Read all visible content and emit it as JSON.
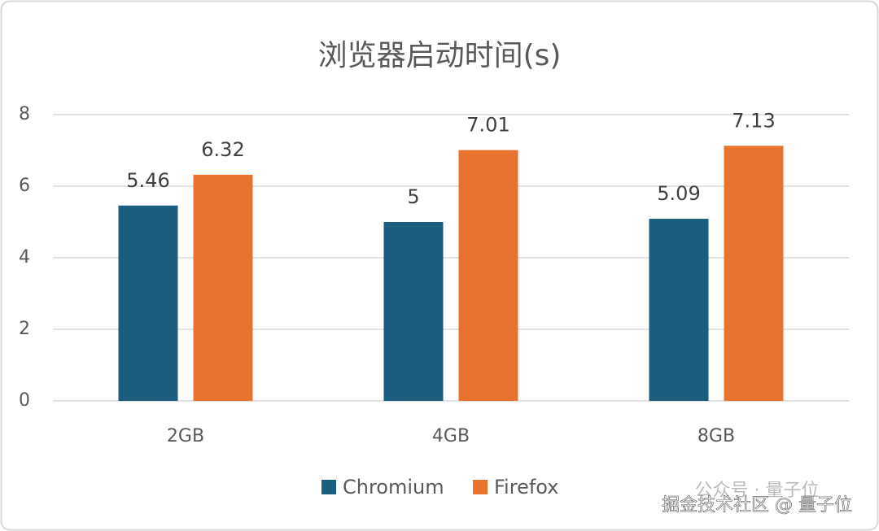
{
  "chart_data": {
    "type": "bar",
    "title": "浏览器启动时间(s)",
    "categories": [
      "2GB",
      "4GB",
      "8GB"
    ],
    "series": [
      {
        "name": "Chromium",
        "color": "#1b5e7e",
        "values": [
          5.46,
          5,
          5.09
        ]
      },
      {
        "name": "Firefox",
        "color": "#e8732f",
        "values": [
          6.32,
          7.01,
          7.13
        ]
      }
    ],
    "ylim": [
      0,
      8
    ],
    "yticks": [
      0,
      2,
      4,
      6,
      8
    ],
    "grid": true,
    "legend": "bottom"
  },
  "watermark": {
    "faint": "公众号 · 量子位",
    "text": "掘金技术社区 @ 量子位"
  }
}
